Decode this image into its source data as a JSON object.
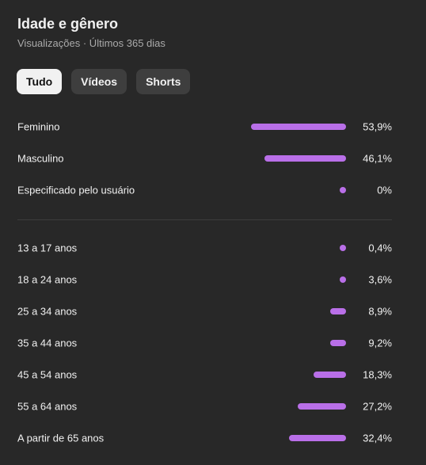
{
  "header": {
    "title": "Idade e gênero",
    "subtitle": "Visualizações · Últimos 365 dias"
  },
  "tabs": [
    {
      "label": "Tudo",
      "active": true
    },
    {
      "label": "Vídeos",
      "active": false
    },
    {
      "label": "Shorts",
      "active": false
    }
  ],
  "colors": {
    "bar": "#b96fe8",
    "background": "#282828"
  },
  "gender": [
    {
      "label": "Feminino",
      "value_text": "53,9%",
      "value": 53.9
    },
    {
      "label": "Masculino",
      "value_text": "46,1%",
      "value": 46.1
    },
    {
      "label": "Especificado pelo usuário",
      "value_text": "0%",
      "value": 0
    }
  ],
  "age": [
    {
      "label": "13 a 17 anos",
      "value_text": "0,4%",
      "value": 0.4
    },
    {
      "label": "18 a 24 anos",
      "value_text": "3,6%",
      "value": 3.6
    },
    {
      "label": "25 a 34 anos",
      "value_text": "8,9%",
      "value": 8.9
    },
    {
      "label": "35 a 44 anos",
      "value_text": "9,2%",
      "value": 9.2
    },
    {
      "label": "45 a 54 anos",
      "value_text": "18,3%",
      "value": 18.3
    },
    {
      "label": "55 a 64 anos",
      "value_text": "27,2%",
      "value": 27.2
    },
    {
      "label": "A partir de 65 anos",
      "value_text": "32,4%",
      "value": 32.4
    }
  ]
}
